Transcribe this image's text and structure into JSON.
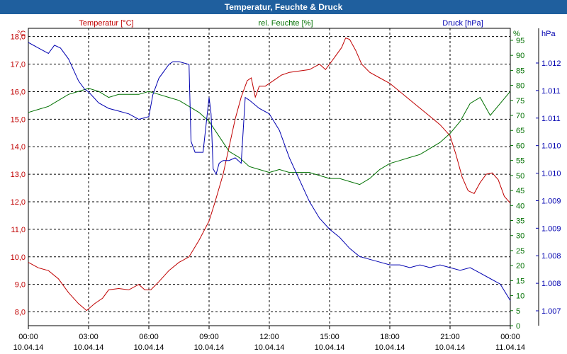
{
  "title": "Temperatur, Feuchte & Druck",
  "colors": {
    "temperature": "#c00000",
    "humidity": "#007000",
    "pressure": "#0000b0",
    "titlebar": "#1f5f9e",
    "grid": "#000000"
  },
  "chart_data": {
    "type": "line",
    "title": "Temperatur, Feuchte & Druck",
    "grid": true,
    "x_ticks": [
      {
        "time": "00:00",
        "date": "10.04.14"
      },
      {
        "time": "03:00",
        "date": "10.04.14"
      },
      {
        "time": "06:00",
        "date": "10.04.14"
      },
      {
        "time": "09:00",
        "date": "10.04.14"
      },
      {
        "time": "12:00",
        "date": "10.04.14"
      },
      {
        "time": "15:00",
        "date": "10.04.14"
      },
      {
        "time": "18:00",
        "date": "10.04.14"
      },
      {
        "time": "21:00",
        "date": "10.04.14"
      },
      {
        "time": "00:00",
        "date": "11.04.14"
      }
    ],
    "axes": {
      "temperature": {
        "label": "Temperatur [°C]",
        "unit": "°C",
        "ylim": [
          7.5,
          18.3
        ],
        "ticks": [
          8.0,
          9.0,
          10.0,
          11.0,
          12.0,
          13.0,
          14.0,
          15.0,
          16.0,
          17.0,
          18.0
        ],
        "tick_labels": [
          "8,0",
          "9,0",
          "10,0",
          "11,0",
          "12,0",
          "13,0",
          "14,0",
          "15,0",
          "16,0",
          "17,0",
          "18,0"
        ]
      },
      "humidity": {
        "label": "rel. Feuchte [%]",
        "unit": "%",
        "ylim": [
          0,
          99
        ],
        "ticks": [
          0,
          5,
          10,
          15,
          20,
          25,
          30,
          35,
          40,
          45,
          50,
          55,
          60,
          65,
          70,
          75,
          80,
          85,
          90,
          95
        ],
        "tick_labels": [
          "0",
          "5",
          "10",
          "15",
          "20",
          "25",
          "30",
          "35",
          "40",
          "45",
          "50",
          "55",
          "60",
          "65",
          "70",
          "75",
          "80",
          "85",
          "90",
          "95"
        ]
      },
      "pressure": {
        "label": "Druck [hPa]",
        "unit": "hPa",
        "tick_labels": [
          "1.012",
          "1.011",
          "1.011",
          "1.010",
          "1.010",
          "1.009",
          "1.009",
          "1.008",
          "1.008",
          "1.007"
        ]
      }
    },
    "series": [
      {
        "name": "Temperatur [°C]",
        "axis": "temperature",
        "x": [
          0,
          0.5,
          1,
          1.5,
          2,
          2.5,
          2.9,
          3.3,
          3.7,
          4,
          4.5,
          5,
          5.5,
          5.8,
          6.1,
          6.5,
          7,
          7.5,
          8,
          8.5,
          9,
          9.3,
          9.7,
          10,
          10.3,
          10.6,
          10.9,
          11.1,
          11.3,
          11.5,
          11.8,
          12.2,
          12.6,
          13,
          13.5,
          14,
          14.5,
          14.8,
          15.2,
          15.6,
          15.8,
          16,
          16.3,
          16.6,
          17,
          17.5,
          18,
          18.5,
          19,
          19.5,
          20,
          20.5,
          21,
          21.3,
          21.6,
          21.9,
          22.2,
          22.5,
          22.8,
          23.1,
          23.4,
          23.7,
          24
        ],
        "values": [
          9.8,
          9.6,
          9.5,
          9.2,
          8.7,
          8.3,
          8.05,
          8.3,
          8.5,
          8.8,
          8.85,
          8.8,
          9.0,
          8.8,
          8.8,
          9.1,
          9.5,
          9.8,
          10.0,
          10.6,
          11.3,
          12.0,
          13.0,
          14.0,
          15.0,
          15.8,
          16.4,
          16.5,
          15.8,
          16.2,
          16.2,
          16.4,
          16.6,
          16.7,
          16.75,
          16.8,
          17.0,
          16.8,
          17.2,
          17.6,
          17.95,
          17.9,
          17.5,
          17.0,
          16.7,
          16.5,
          16.3,
          16.0,
          15.7,
          15.4,
          15.1,
          14.8,
          14.4,
          13.7,
          12.9,
          12.4,
          12.3,
          12.7,
          13.0,
          13.05,
          12.8,
          12.2,
          11.95
        ]
      },
      {
        "name": "rel. Feuchte [%]",
        "axis": "humidity",
        "x": [
          0,
          0.5,
          1,
          1.5,
          2,
          2.5,
          3,
          3.5,
          4,
          4.5,
          5,
          5.5,
          6,
          6.5,
          7,
          7.5,
          8,
          8.5,
          9,
          9.5,
          10,
          10.5,
          11,
          11.5,
          12,
          12.5,
          13,
          13.5,
          14,
          14.5,
          15,
          15.5,
          16,
          16.5,
          17,
          17.5,
          18,
          18.5,
          19,
          19.5,
          20,
          20.5,
          21,
          21.5,
          22,
          22.5,
          23,
          23.5,
          24
        ],
        "values": [
          71,
          72,
          73,
          75,
          77,
          78,
          79,
          78,
          76,
          77,
          77,
          77,
          78,
          77,
          76,
          75,
          73,
          71,
          68,
          63,
          58,
          56,
          53,
          52,
          51,
          52,
          51,
          51,
          51,
          50,
          49,
          49,
          48,
          47,
          49,
          52,
          54,
          55,
          56,
          57,
          59,
          61,
          64,
          68,
          74,
          76,
          70,
          74,
          78
        ]
      },
      {
        "name": "Druck [hPa]",
        "axis": "pressure",
        "x": [
          0,
          0.5,
          1,
          1.3,
          1.6,
          2,
          2.5,
          2.8,
          3,
          3.5,
          4,
          4.5,
          5,
          5.5,
          6,
          6.2,
          6.5,
          6.8,
          7,
          7.2,
          7.5,
          8,
          8.1,
          8.3,
          8.7,
          9,
          9.1,
          9.2,
          9.35,
          9.5,
          9.7,
          10,
          10.3,
          10.6,
          10.8,
          11,
          11.5,
          12,
          12.5,
          13,
          13.5,
          14,
          14.5,
          15,
          15.5,
          16,
          16.5,
          17,
          17.5,
          18,
          18.5,
          19,
          19.5,
          20,
          20.5,
          21,
          21.5,
          22,
          22.5,
          23,
          23.5,
          24
        ],
        "values": [
          1011.9,
          1011.8,
          1011.7,
          1011.85,
          1011.8,
          1011.6,
          1011.2,
          1011.05,
          1011.0,
          1010.8,
          1010.7,
          1010.65,
          1010.6,
          1010.5,
          1010.55,
          1010.95,
          1011.25,
          1011.4,
          1011.5,
          1011.55,
          1011.55,
          1011.5,
          1010.1,
          1009.9,
          1009.9,
          1010.9,
          1010.6,
          1009.6,
          1009.5,
          1009.7,
          1009.75,
          1009.75,
          1009.8,
          1009.7,
          1010.9,
          1010.85,
          1010.7,
          1010.6,
          1010.3,
          1009.8,
          1009.4,
          1009.0,
          1008.7,
          1008.5,
          1008.35,
          1008.15,
          1008.0,
          1007.95,
          1007.9,
          1007.85,
          1007.85,
          1007.8,
          1007.85,
          1007.8,
          1007.85,
          1007.8,
          1007.75,
          1007.8,
          1007.7,
          1007.6,
          1007.5,
          1007.2
        ]
      }
    ]
  }
}
